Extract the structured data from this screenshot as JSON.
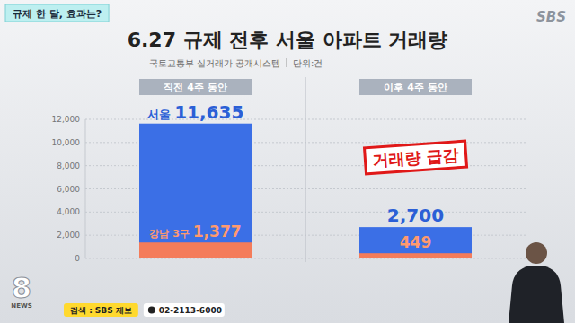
{
  "chart_data": {
    "type": "bar",
    "title": "6.27 규제 전후 서울 아파트 거래량",
    "source": "국토교통부 실거래가 공개시스템",
    "unit": "단위:건",
    "categories": [
      "직전 4주 동안",
      "이후 4주 동안"
    ],
    "series": [
      {
        "name": "서울",
        "color": "#3b6fe6",
        "values": [
          11635,
          2700
        ],
        "value_labels": [
          "11,635",
          "2,700"
        ]
      },
      {
        "name": "강남 3구",
        "color": "#f47c5a",
        "values": [
          1377,
          449
        ],
        "value_labels": [
          "1,377",
          "449"
        ]
      }
    ],
    "stacked": false,
    "data_labels": true,
    "grid": true,
    "ylim": [
      0,
      12000
    ],
    "yticks": [
      0,
      {
        "value": 2000,
        "label": "2,000"
      },
      {
        "value": 4000,
        "label": "4,000"
      },
      {
        "value": 6000,
        "label": "6,000"
      },
      {
        "value": 8000,
        "label": "8,000"
      },
      {
        "value": 10000,
        "label": "10,000"
      },
      {
        "value": 12000,
        "label": "12,000"
      }
    ],
    "annotations": [
      {
        "text": "거래량 급감"
      }
    ]
  },
  "broadcast": {
    "tag": "규제 한 달, 효과는?",
    "logo": "SBS",
    "news_number": "8",
    "news_label": "NEWS",
    "search": "검색 : SBS 제보",
    "phone": "02-2113-6000"
  }
}
